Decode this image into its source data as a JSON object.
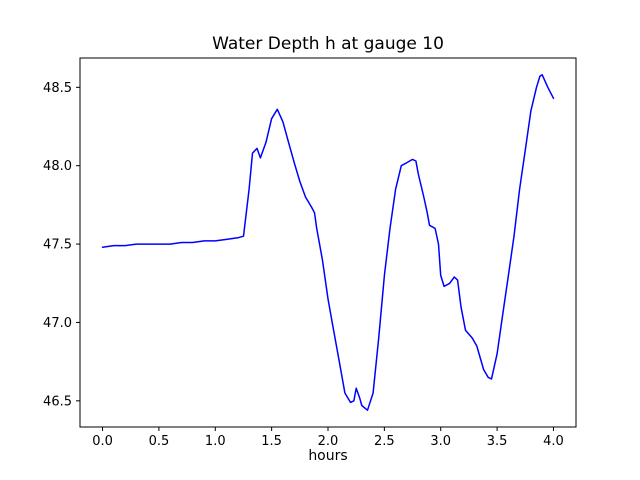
{
  "title": "Water Depth h at gauge 10",
  "xlabel": "hours",
  "chart_data": {
    "type": "line",
    "title": "Water Depth h at gauge 10",
    "xlabel": "hours",
    "ylabel": "",
    "legend": null,
    "grid": false,
    "line_color": "#0000ff",
    "xlim": [
      -0.2,
      4.2
    ],
    "ylim": [
      46.333,
      48.687
    ],
    "x_ticks": [
      0.0,
      0.5,
      1.0,
      1.5,
      2.0,
      2.5,
      3.0,
      3.5,
      4.0
    ],
    "y_ticks": [
      46.5,
      47.0,
      47.5,
      48.0,
      48.5
    ],
    "x": [
      0.0,
      0.1,
      0.2,
      0.3,
      0.4,
      0.5,
      0.6,
      0.7,
      0.8,
      0.9,
      1.0,
      1.1,
      1.2,
      1.25,
      1.3,
      1.33,
      1.37,
      1.4,
      1.45,
      1.5,
      1.55,
      1.6,
      1.65,
      1.7,
      1.75,
      1.8,
      1.85,
      1.88,
      1.9,
      1.95,
      2.0,
      2.05,
      2.1,
      2.15,
      2.2,
      2.23,
      2.25,
      2.28,
      2.3,
      2.35,
      2.4,
      2.45,
      2.5,
      2.55,
      2.6,
      2.65,
      2.7,
      2.75,
      2.78,
      2.8,
      2.85,
      2.88,
      2.9,
      2.95,
      2.98,
      3.0,
      3.03,
      3.08,
      3.12,
      3.15,
      3.18,
      3.22,
      3.28,
      3.32,
      3.38,
      3.42,
      3.45,
      3.5,
      3.55,
      3.6,
      3.65,
      3.7,
      3.75,
      3.8,
      3.85,
      3.88,
      3.9,
      3.95,
      4.0
    ],
    "y": [
      47.48,
      47.49,
      47.49,
      47.5,
      47.5,
      47.5,
      47.5,
      47.51,
      47.51,
      47.52,
      47.52,
      47.53,
      47.54,
      47.55,
      47.85,
      48.08,
      48.11,
      48.05,
      48.15,
      48.3,
      48.36,
      48.28,
      48.15,
      48.02,
      47.9,
      47.8,
      47.74,
      47.7,
      47.6,
      47.4,
      47.15,
      46.95,
      46.75,
      46.55,
      46.49,
      46.5,
      46.58,
      46.52,
      46.47,
      46.44,
      46.55,
      46.9,
      47.3,
      47.6,
      47.85,
      48.0,
      48.02,
      48.04,
      48.03,
      47.95,
      47.8,
      47.7,
      47.62,
      47.6,
      47.5,
      47.3,
      47.23,
      47.25,
      47.29,
      47.27,
      47.1,
      46.95,
      46.9,
      46.85,
      46.7,
      46.65,
      46.64,
      46.8,
      47.05,
      47.3,
      47.55,
      47.85,
      48.1,
      48.35,
      48.5,
      48.57,
      48.58,
      48.5,
      48.43
    ]
  }
}
